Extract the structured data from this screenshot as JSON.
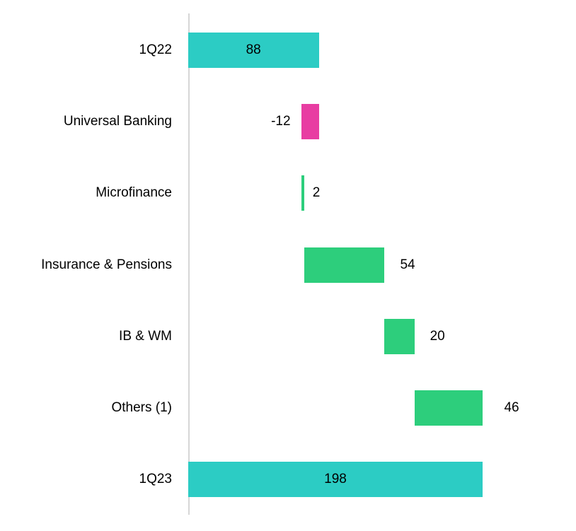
{
  "chart_data": {
    "type": "bar",
    "subtype": "waterfall",
    "orientation": "horizontal",
    "title": "",
    "xlabel": "",
    "ylabel": "",
    "legend": "none",
    "grid": "off",
    "xlim": [
      0,
      198
    ],
    "categories": [
      "1Q22",
      "Universal Banking",
      "Microfinance",
      "Insurance & Pensions",
      "IB & WM",
      "Others (1)",
      "1Q23"
    ],
    "values": [
      88,
      -12,
      2,
      54,
      20,
      46,
      198
    ],
    "labels": [
      "88",
      "-12",
      "2",
      "54",
      "20",
      "46",
      "198"
    ],
    "bar_roles": [
      "total",
      "decrease",
      "increase",
      "increase",
      "increase",
      "increase",
      "total"
    ],
    "colors": {
      "total": "#2CCCC4",
      "increase": "#2DCE7C",
      "decrease": "#E83DA2",
      "axis_line": "#D6D6D6",
      "label_text": "#000000",
      "background": "#FFFFFF"
    }
  }
}
